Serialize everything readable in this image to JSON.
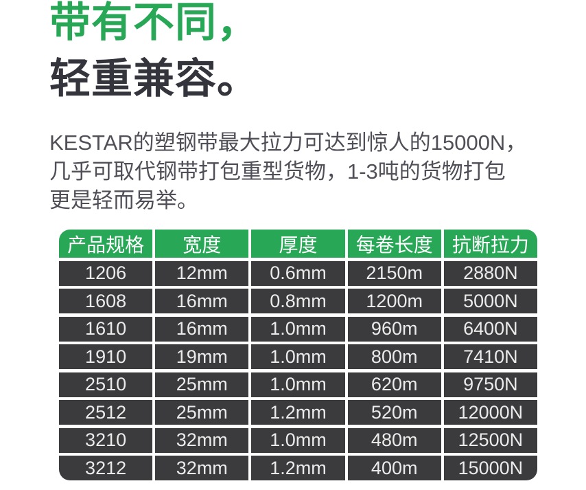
{
  "headline": {
    "line1": "带有不同，",
    "line2": "轻重兼容。"
  },
  "description": {
    "lines": [
      "KESTAR的塑钢带最大拉力可达到惊人的15000N，",
      "几乎可取代钢带打包重型货物，1-3吨的货物打包",
      "更是轻而易举。"
    ]
  },
  "spec_table": {
    "headers": [
      "产品规格",
      "宽度",
      "厚度",
      "每卷长度",
      "抗断拉力"
    ],
    "rows": [
      [
        "1206",
        "12mm",
        "0.6mm",
        "2150m",
        "2880N"
      ],
      [
        "1608",
        "16mm",
        "0.8mm",
        "1200m",
        "5000N"
      ],
      [
        "1610",
        "16mm",
        "1.0mm",
        "960m",
        "6400N"
      ],
      [
        "1910",
        "19mm",
        "1.0mm",
        "800m",
        "7410N"
      ],
      [
        "2510",
        "25mm",
        "1.0mm",
        "620m",
        "9750N"
      ],
      [
        "2512",
        "25mm",
        "1.2mm",
        "520m",
        "12000N"
      ],
      [
        "3210",
        "32mm",
        "1.0mm",
        "480m",
        "12500N"
      ],
      [
        "3212",
        "32mm",
        "1.2mm",
        "400m",
        "15000N"
      ]
    ]
  },
  "colors": {
    "accent_green": "#28a757",
    "headline_dark": "#34343c",
    "description_gray": "#4f4f57",
    "cell_dark": "#3b3b3d",
    "cell_text": "#ebebeb",
    "header_text": "#ffffff",
    "page_background": "#ffffff"
  }
}
